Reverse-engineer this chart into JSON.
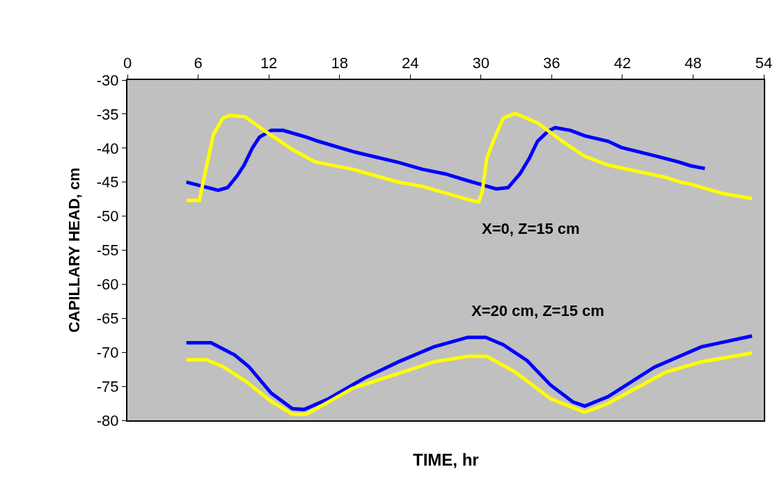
{
  "chart_data": {
    "type": "line",
    "xlabel": "TIME, hr",
    "ylabel": "CAPILLARY HEAD, cm",
    "xlim": [
      0,
      54
    ],
    "xticks": [
      0,
      6,
      12,
      18,
      24,
      30,
      36,
      42,
      48,
      54
    ],
    "ylim": [
      -80,
      -30
    ],
    "yticks": [
      -80,
      -75,
      -70,
      -65,
      -60,
      -55,
      -50,
      -45,
      -40,
      -35,
      -30
    ],
    "grid": false,
    "legend": false,
    "marker": "none",
    "line_style": "solid",
    "annotations": [
      "X=0, Z=15 cm",
      "X=20 cm, Z=15 cm"
    ],
    "series": [
      {
        "color": "#0000ff",
        "x": [
          5.0,
          7.7,
          8.5,
          9.3,
          9.9,
          10.6,
          11.2,
          12.2,
          13.2,
          15.2,
          16.2,
          19.1,
          23.0,
          25.0,
          27.0,
          28.9,
          29.9,
          31.3,
          32.3,
          33.3,
          34.1,
          34.8,
          35.7,
          36.3,
          37.6,
          38.8,
          40.8,
          41.9,
          44.7,
          46.7,
          47.8,
          49.0
        ],
        "values": [
          -45.0,
          -46.2,
          -45.8,
          -44.1,
          -42.5,
          -40.0,
          -38.4,
          -37.4,
          -37.4,
          -38.4,
          -39.0,
          -40.5,
          -42.1,
          -43.1,
          -43.8,
          -44.8,
          -45.3,
          -46.0,
          -45.8,
          -43.8,
          -41.5,
          -39.0,
          -37.5,
          -37.0,
          -37.4,
          -38.2,
          -39.0,
          -39.9,
          -41.1,
          -42.0,
          -42.6,
          -43.0
        ]
      },
      {
        "color": "#ffff00",
        "x": [
          5.0,
          6.1,
          6.7,
          7.3,
          8.1,
          8.7,
          10.0,
          11.6,
          14.0,
          15.9,
          19.1,
          23.0,
          25.0,
          29.2,
          29.8,
          30.1,
          30.5,
          31.1,
          31.9,
          32.9,
          34.8,
          36.9,
          38.8,
          40.8,
          45.7,
          46.9,
          47.8,
          50.6,
          53.0
        ],
        "values": [
          -47.7,
          -47.7,
          -42.8,
          -38.0,
          -35.6,
          -35.2,
          -35.4,
          -37.4,
          -40.2,
          -42.0,
          -43.1,
          -45.0,
          -45.6,
          -47.7,
          -47.9,
          -46.5,
          -41.5,
          -38.7,
          -35.6,
          -34.9,
          -36.3,
          -39.0,
          -41.2,
          -42.5,
          -44.3,
          -45.0,
          -45.3,
          -46.7,
          -47.4
        ]
      },
      {
        "color": "#0000ff",
        "x": [
          5.0,
          7.1,
          9.1,
          10.3,
          12.2,
          14.0,
          15.0,
          17.1,
          20.1,
          23.0,
          26.0,
          28.9,
          30.4,
          31.9,
          33.9,
          35.9,
          37.8,
          38.8,
          40.8,
          44.7,
          48.7,
          53.0
        ],
        "values": [
          -68.6,
          -68.6,
          -70.4,
          -72.1,
          -76.0,
          -78.3,
          -78.4,
          -76.8,
          -73.8,
          -71.4,
          -69.2,
          -67.8,
          -67.8,
          -68.9,
          -71.2,
          -74.8,
          -77.3,
          -77.9,
          -76.5,
          -72.2,
          -69.2,
          -67.6
        ]
      },
      {
        "color": "#ffff00",
        "x": [
          5.0,
          6.7,
          8.1,
          10.0,
          12.2,
          14.0,
          15.2,
          19.1,
          23.0,
          26.0,
          28.9,
          30.5,
          32.9,
          35.9,
          38.8,
          40.8,
          45.7,
          48.7,
          53.0
        ],
        "values": [
          -71.1,
          -71.1,
          -72.1,
          -74.2,
          -77.2,
          -79.1,
          -79.1,
          -75.3,
          -73.1,
          -71.4,
          -70.6,
          -70.6,
          -72.9,
          -76.8,
          -78.8,
          -77.5,
          -72.9,
          -71.4,
          -70.1
        ]
      }
    ]
  }
}
